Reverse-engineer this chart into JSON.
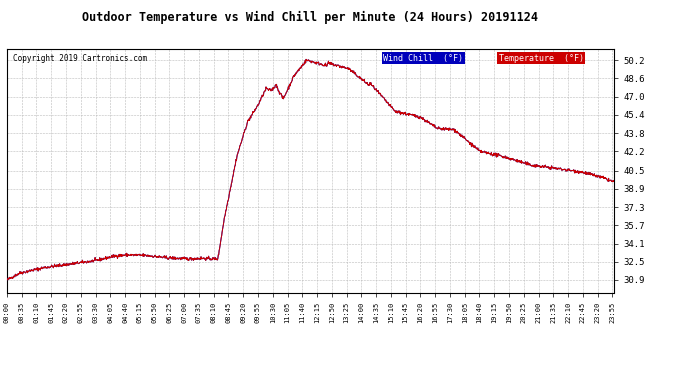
{
  "title": "Outdoor Temperature vs Wind Chill per Minute (24 Hours) 20191124",
  "copyright": "Copyright 2019 Cartronics.com",
  "legend_wind_chill": "Wind Chill  (°F)",
  "legend_temperature": "Temperature  (°F)",
  "wind_chill_color": "#0000bb",
  "temperature_color": "#cc0000",
  "legend_wc_bg": "#0000bb",
  "legend_temp_bg": "#cc0000",
  "background_color": "#ffffff",
  "plot_bg_color": "#ffffff",
  "grid_color": "#bbbbbb",
  "y_ticks": [
    30.9,
    32.5,
    34.1,
    35.7,
    37.3,
    38.9,
    40.5,
    42.2,
    43.8,
    45.4,
    47.0,
    48.6,
    50.2
  ],
  "ylim": [
    29.8,
    51.2
  ],
  "x_labels": [
    "00:00",
    "00:35",
    "01:10",
    "01:45",
    "02:20",
    "02:55",
    "03:30",
    "04:05",
    "04:40",
    "05:15",
    "05:50",
    "06:25",
    "07:00",
    "07:35",
    "08:10",
    "08:45",
    "09:20",
    "09:55",
    "10:30",
    "11:05",
    "11:40",
    "12:15",
    "12:50",
    "13:25",
    "14:00",
    "14:35",
    "15:10",
    "15:45",
    "16:20",
    "16:55",
    "17:30",
    "18:05",
    "18:40",
    "19:15",
    "19:50",
    "20:25",
    "21:00",
    "21:35",
    "22:10",
    "22:45",
    "23:20",
    "23:55"
  ]
}
